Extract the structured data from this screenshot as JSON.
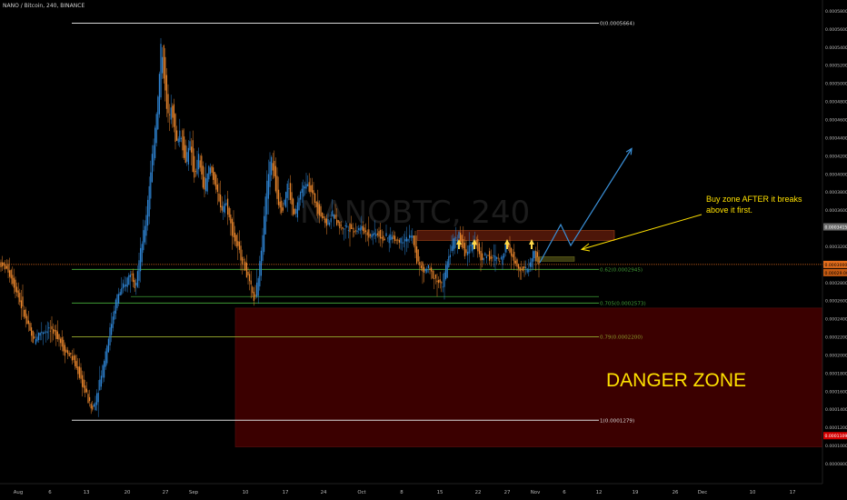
{
  "header": {
    "symbol_title": "NANO / Bitcoin, 240, BINANCE"
  },
  "watermark": {
    "text": "NANOBTC, 240"
  },
  "colors": {
    "background": "#000000",
    "candle_up": "#2e83d1",
    "candle_down": "#e8852c",
    "fib_zero": "#d8d8d8",
    "fib_green": "#3f9c35",
    "fib_olive": "#8a9a2a",
    "danger_fill": "#3b0000",
    "buy_zone_fill": "#5a1a0a",
    "price_line": "#e36d1c",
    "projection": "#3a8fd6",
    "annotation_yellow": "#ffe100",
    "axis_text": "#b8b8b8"
  },
  "annotations": {
    "buy_zone_note": [
      "Buy zone AFTER it breaks",
      "above it first."
    ],
    "danger_zone": "DANGER ZONE"
  },
  "price_badges": {
    "upper_gray": "0.0003415",
    "current_orange": "0.0003000",
    "current_sub": "0.00029.00",
    "danger_red": "0.0001109"
  },
  "chart_data": {
    "type": "candlestick",
    "title": "NANO / Bitcoin, 240, BINANCE",
    "x_ticks": [
      "Aug",
      "6",
      "13",
      "20",
      "27",
      "Sep",
      "10",
      "17",
      "24",
      "Oct",
      "8",
      "15",
      "22",
      "27",
      "Nov",
      "6",
      "12",
      "19",
      "26",
      "Dec",
      "10",
      "17"
    ],
    "y_ticks": [
      "0.0005800",
      "0.0005600",
      "0.0005400",
      "0.0005200",
      "0.0005000",
      "0.0004800",
      "0.0004600",
      "0.0004400",
      "0.0004200",
      "0.0004000",
      "0.0003800",
      "0.0003600",
      "0.0003400",
      "0.0003200",
      "0.0003000",
      "0.0002800",
      "0.0002600",
      "0.0002400",
      "0.0002200",
      "0.0002000",
      "0.0001800",
      "0.0001600",
      "0.0001400",
      "0.0001200",
      "0.0001000",
      "0.0000800"
    ],
    "ylim": [
      7.8e-05,
      0.000588
    ],
    "fib_levels": [
      {
        "label": "0(0.0005664)",
        "value": 0.0005664
      },
      {
        "label": "0.62(0.0002945)",
        "value": 0.0002945
      },
      {
        "label": "0.705(0.0002573)",
        "value": 0.0002573
      },
      {
        "label": "0.79(0.0002200)",
        "value": 0.00022
      },
      {
        "label": "1(0.0001279)",
        "value": 0.0001279
      }
    ],
    "price_path": [
      [
        0,
        0.000302
      ],
      [
        10,
        0.000295
      ],
      [
        20,
        0.00027
      ],
      [
        30,
        0.000238
      ],
      [
        38,
        0.000215
      ],
      [
        45,
        0.000225
      ],
      [
        55,
        0.000228
      ],
      [
        65,
        0.000222
      ],
      [
        72,
        0.000205
      ],
      [
        80,
        0.000198
      ],
      [
        88,
        0.00018
      ],
      [
        95,
        0.00016
      ],
      [
        103,
        0.000138
      ],
      [
        110,
        0.000165
      ],
      [
        118,
        0.000205
      ],
      [
        125,
        0.00024
      ],
      [
        130,
        0.000265
      ],
      [
        138,
        0.000275
      ],
      [
        145,
        0.000292
      ],
      [
        150,
        0.000278
      ],
      [
        156,
        0.000312
      ],
      [
        162,
        0.00035
      ],
      [
        168,
        0.00041
      ],
      [
        172,
        0.00045
      ],
      [
        176,
        0.00049
      ],
      [
        179,
        0.00055
      ],
      [
        182,
        0.000505
      ],
      [
        186,
        0.00046
      ],
      [
        190,
        0.00048
      ],
      [
        195,
        0.00043
      ],
      [
        200,
        0.00045
      ],
      [
        205,
        0.00041
      ],
      [
        210,
        0.000438
      ],
      [
        215,
        0.000395
      ],
      [
        220,
        0.00042
      ],
      [
        226,
        0.00038
      ],
      [
        232,
        0.00041
      ],
      [
        238,
        0.00039
      ],
      [
        244,
        0.00036
      ],
      [
        250,
        0.00037
      ],
      [
        256,
        0.00034
      ],
      [
        262,
        0.00032
      ],
      [
        270,
        0.0003
      ],
      [
        276,
        0.000278
      ],
      [
        282,
        0.000258
      ],
      [
        288,
        0.000305
      ],
      [
        294,
        0.00038
      ],
      [
        300,
        0.00042
      ],
      [
        306,
        0.000375
      ],
      [
        312,
        0.00036
      ],
      [
        318,
        0.00039
      ],
      [
        325,
        0.00035
      ],
      [
        332,
        0.00038
      ],
      [
        340,
        0.00039
      ],
      [
        346,
        0.000375
      ],
      [
        352,
        0.00036
      ],
      [
        360,
        0.000345
      ],
      [
        368,
        0.000355
      ],
      [
        376,
        0.00034
      ],
      [
        384,
        0.000342
      ],
      [
        392,
        0.000338
      ],
      [
        400,
        0.00034
      ],
      [
        408,
        0.000332
      ],
      [
        416,
        0.000335
      ],
      [
        424,
        0.000328
      ],
      [
        432,
        0.00033
      ],
      [
        440,
        0.000326
      ],
      [
        448,
        0.000328
      ],
      [
        456,
        0.00033
      ],
      [
        460,
        0.000305
      ],
      [
        466,
        0.000292
      ],
      [
        472,
        0.000296
      ],
      [
        480,
        0.000285
      ],
      [
        488,
        0.000275
      ],
      [
        494,
        0.000305
      ],
      [
        500,
        0.000325
      ],
      [
        506,
        0.000335
      ],
      [
        512,
        0.000312
      ],
      [
        518,
        0.000316
      ],
      [
        524,
        0.00033
      ],
      [
        530,
        0.000305
      ],
      [
        536,
        0.000312
      ],
      [
        542,
        0.000305
      ],
      [
        548,
        0.000308
      ],
      [
        552,
        0.000302
      ],
      [
        558,
        0.000325
      ],
      [
        562,
        0.000318
      ],
      [
        566,
        0.000305
      ],
      [
        572,
        0.000298
      ],
      [
        578,
        0.000293
      ],
      [
        584,
        0.000296
      ],
      [
        588,
        0.000315
      ],
      [
        594,
        0.000302
      ]
    ],
    "projection_path": [
      [
        594,
        0.000302
      ],
      [
        617,
        0.000344
      ],
      [
        628,
        0.000321
      ],
      [
        695,
        0.000428
      ]
    ]
  }
}
